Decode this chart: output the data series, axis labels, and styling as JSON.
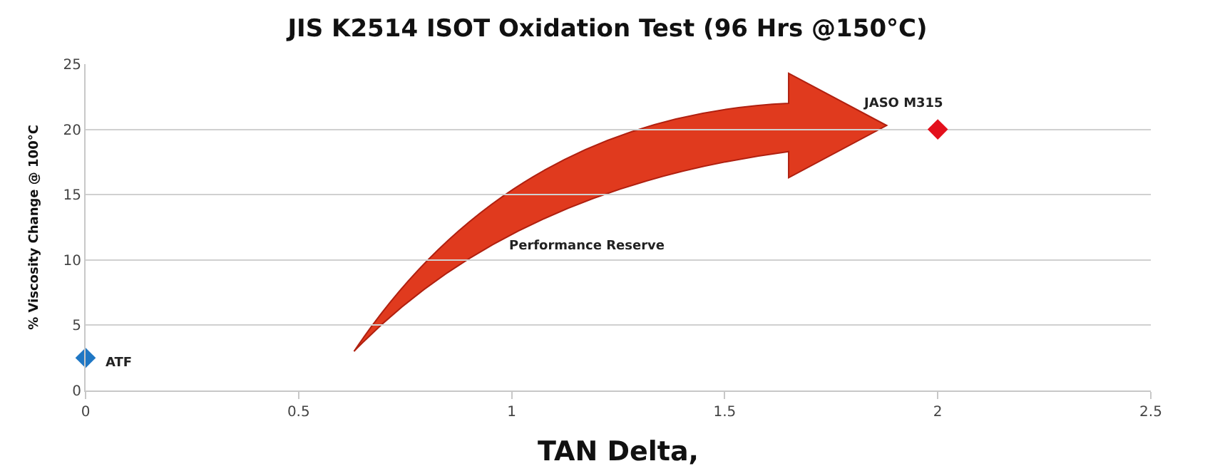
{
  "chart_data": {
    "type": "scatter",
    "title": "JIS K2514 ISOT Oxidation Test (96 Hrs @150°C)",
    "xlabel": "TAN Delta,",
    "ylabel": "% Viscosity Change @ 100°C",
    "series": [
      {
        "name": "ATF",
        "color": "#1f77c4",
        "x": [
          0
        ],
        "values": [
          2.5
        ]
      },
      {
        "name": "JASO M315",
        "color": "#e3101c",
        "x": [
          2
        ],
        "values": [
          20
        ]
      }
    ],
    "marker": "diamond",
    "xlim": [
      0,
      2.5
    ],
    "xticks": [
      0,
      0.5,
      1,
      1.5,
      2,
      2.5
    ],
    "ylim": [
      0,
      25
    ],
    "yticks": [
      0,
      5,
      10,
      15,
      20,
      25
    ],
    "grid": "y",
    "legend": false,
    "annotations": [
      "Performance Reserve"
    ]
  }
}
